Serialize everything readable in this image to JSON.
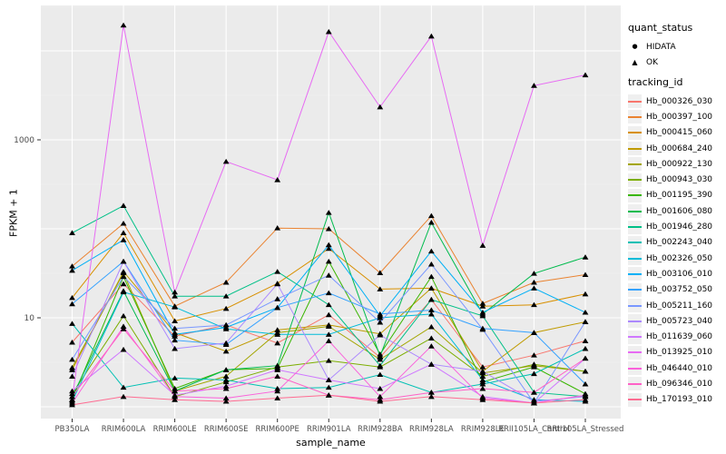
{
  "chart_data": {
    "type": "line",
    "title": "",
    "xlabel": "sample_name",
    "ylabel": "FPKM + 1",
    "y_scale": "log10",
    "y_axis_tick_labels": [
      "10",
      "1000"
    ],
    "y_axis_tick_values": [
      10,
      1000
    ],
    "ylim": [
      0.75,
      30000
    ],
    "grid": "white major gridlines each decade, faint minors at half-decades, grey panel",
    "legend_position": "right",
    "marker_color": "#000000",
    "panel_bg": "#EBEBEB",
    "axis_text_color": "#4D4D4D",
    "categories": [
      "PB350LA",
      "RRIM600LA",
      "RRIM600LE",
      "RRIM600SE",
      "RRIM600PE",
      "RRIM901LA",
      "RRIM928BA",
      "RRIM928LA",
      "RRIM928LE",
      "RRII105LA_Control",
      "RRII105LA_Stressed"
    ],
    "legend": {
      "quant_status": {
        "title": "quant_status",
        "items": [
          {
            "label": "HIDATA",
            "marker": "circle"
          },
          {
            "label": "OK",
            "marker": "triangle"
          }
        ]
      },
      "tracking_id": {
        "title": "tracking_id"
      }
    },
    "series": [
      {
        "name": "Hb_000326_030",
        "color": "#F8766D",
        "values": [
          5.3,
          24,
          6.2,
          8.3,
          5.2,
          10.8,
          3.6,
          16,
          2.8,
          3.8,
          5.5
        ]
      },
      {
        "name": "Hb_000397_100",
        "color": "#EA8331",
        "values": [
          38,
          115,
          13.5,
          25,
          102,
          100,
          32,
          140,
          14.5,
          25,
          30.5
        ]
      },
      {
        "name": "Hb_000415_060",
        "color": "#D89000",
        "values": [
          16.8,
          90,
          9.2,
          12.7,
          24.3,
          60,
          21,
          21.5,
          13.5,
          14,
          18.5
        ]
      },
      {
        "name": "Hb_000684_240",
        "color": "#C09B00",
        "values": [
          2.6,
          33,
          6.8,
          4.2,
          7.3,
          8.3,
          6.6,
          21.5,
          2.5,
          6.8,
          9
        ]
      },
      {
        "name": "Hb_000922_130",
        "color": "#A3A500",
        "values": [
          2.75,
          32,
          1.5,
          2.2,
          6.8,
          8.0,
          3.4,
          7.9,
          2.4,
          2.9,
          2.5
        ]
      },
      {
        "name": "Hb_000943_030",
        "color": "#7CAE00",
        "values": [
          1.4,
          10.5,
          1.3,
          1.9,
          2.8,
          3.3,
          2.8,
          5.9,
          2.2,
          3.0,
          2.5
        ]
      },
      {
        "name": "Hb_001195_390",
        "color": "#39B600",
        "values": [
          1.2,
          29,
          1.6,
          2.6,
          2.7,
          43,
          3.9,
          29,
          1.9,
          2.8,
          1.4
        ]
      },
      {
        "name": "Hb_001606_080",
        "color": "#00BB4E",
        "values": [
          1.3,
          20,
          1.5,
          2.6,
          2.9,
          152,
          3.7,
          118,
          11,
          31.5,
          48
        ]
      },
      {
        "name": "Hb_001946_280",
        "color": "#00C087",
        "values": [
          90,
          182,
          17.5,
          17.5,
          33,
          14,
          2.9,
          16,
          10.5,
          1.45,
          1.3
        ]
      },
      {
        "name": "Hb_002243_040",
        "color": "#00C0B4",
        "values": [
          8.6,
          1.65,
          2.1,
          2.0,
          1.6,
          1.65,
          2.3,
          1.45,
          1.8,
          2.35,
          4.5
        ]
      },
      {
        "name": "Hb_002326_050",
        "color": "#00BCD8",
        "values": [
          1.15,
          19.5,
          13.2,
          7.5,
          6.5,
          6.5,
          10,
          11,
          2.0,
          1.2,
          1.15
        ]
      },
      {
        "name": "Hb_003106_010",
        "color": "#00B0F6",
        "values": [
          34,
          75,
          6.5,
          7.8,
          13,
          66,
          10.5,
          56,
          11.5,
          21.5,
          11.5
        ]
      },
      {
        "name": "Hb_003752_050",
        "color": "#35A2FF",
        "values": [
          14.3,
          43,
          5.6,
          5.0,
          13,
          19,
          11,
          12.2,
          7.6,
          6.8,
          1.8
        ]
      },
      {
        "name": "Hb_005211_160",
        "color": "#7997FF",
        "values": [
          3.4,
          29,
          7.6,
          8.3,
          16.3,
          30,
          8.9,
          40,
          7.4,
          1.1,
          9
        ]
      },
      {
        "name": "Hb_005723_040",
        "color": "#AC88FF",
        "values": [
          2.2,
          43,
          4.5,
          5.2,
          24,
          2.0,
          6.4,
          3.0,
          2.5,
          1.15,
          1.3
        ]
      },
      {
        "name": "Hb_011639_060",
        "color": "#CF78FF",
        "values": [
          1.5,
          4.4,
          1.35,
          1.7,
          2.6,
          2.0,
          1.6,
          3.0,
          1.3,
          1.1,
          3.5
        ]
      },
      {
        "name": "Hb_013925_010",
        "color": "#E76BF3",
        "values": [
          1.2,
          19400,
          19.4,
          570,
          355,
          16400,
          2340,
          14600,
          65,
          4070,
          5350
        ]
      },
      {
        "name": "Hb_046440_010",
        "color": "#FA62DB",
        "values": [
          1.1,
          8,
          1.3,
          1.25,
          1.5,
          5.5,
          1.3,
          4.8,
          1.25,
          1.1,
          1.35
        ]
      },
      {
        "name": "Hb_096346_010",
        "color": "#FF61C7",
        "values": [
          1.3,
          7.5,
          1.5,
          1.6,
          2.2,
          1.35,
          1.2,
          1.45,
          1.6,
          1.45,
          3.5
        ]
      },
      {
        "name": "Hb_170193_010",
        "color": "#FF6C92",
        "values": [
          1.05,
          1.3,
          1.2,
          1.15,
          1.25,
          1.35,
          1.15,
          1.3,
          1.2,
          1.1,
          1.2
        ]
      }
    ]
  }
}
